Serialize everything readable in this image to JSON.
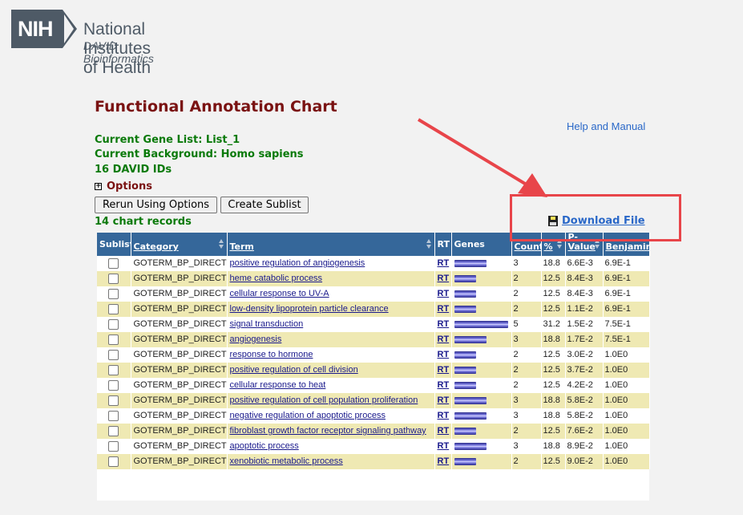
{
  "header": {
    "logo_text": "NIH",
    "org_name": "National Institutes of Health",
    "org_sub": "DAVID Bioinformatics"
  },
  "page": {
    "title": "Functional Annotation Chart",
    "help_link": "Help and Manual",
    "gene_list": "Current Gene List: List_1",
    "background": "Current Background: Homo sapiens",
    "ids": "16 DAVID IDs",
    "options_label": "Options",
    "rerun_button": "Rerun Using Options",
    "sublist_button": "Create Sublist",
    "records": "14 chart records",
    "download_label": "Download File"
  },
  "table": {
    "headers": {
      "sublist": "Sublist",
      "category": "Category",
      "term": "Term",
      "rt": "RT",
      "genes": "Genes",
      "count": "Count",
      "percent": "%",
      "pvalue_line1": "P-",
      "pvalue_line2": "Value",
      "benjamini": "Benjamini"
    },
    "rows": [
      {
        "category": "GOTERM_BP_DIRECT",
        "term": "positive regulation of angiogenesis",
        "rt": "RT",
        "count": "3",
        "percent": "18.8",
        "pvalue": "6.6E-3",
        "benjamini": "6.9E-1"
      },
      {
        "category": "GOTERM_BP_DIRECT",
        "term": "heme catabolic process",
        "rt": "RT",
        "count": "2",
        "percent": "12.5",
        "pvalue": "8.4E-3",
        "benjamini": "6.9E-1"
      },
      {
        "category": "GOTERM_BP_DIRECT",
        "term": "cellular response to UV-A",
        "rt": "RT",
        "count": "2",
        "percent": "12.5",
        "pvalue": "8.4E-3",
        "benjamini": "6.9E-1"
      },
      {
        "category": "GOTERM_BP_DIRECT",
        "term": "low-density lipoprotein particle clearance",
        "rt": "RT",
        "count": "2",
        "percent": "12.5",
        "pvalue": "1.1E-2",
        "benjamini": "6.9E-1"
      },
      {
        "category": "GOTERM_BP_DIRECT",
        "term": "signal transduction",
        "rt": "RT",
        "count": "5",
        "percent": "31.2",
        "pvalue": "1.5E-2",
        "benjamini": "7.5E-1"
      },
      {
        "category": "GOTERM_BP_DIRECT",
        "term": "angiogenesis",
        "rt": "RT",
        "count": "3",
        "percent": "18.8",
        "pvalue": "1.7E-2",
        "benjamini": "7.5E-1"
      },
      {
        "category": "GOTERM_BP_DIRECT",
        "term": "response to hormone",
        "rt": "RT",
        "count": "2",
        "percent": "12.5",
        "pvalue": "3.0E-2",
        "benjamini": "1.0E0"
      },
      {
        "category": "GOTERM_BP_DIRECT",
        "term": "positive regulation of cell division",
        "rt": "RT",
        "count": "2",
        "percent": "12.5",
        "pvalue": "3.7E-2",
        "benjamini": "1.0E0"
      },
      {
        "category": "GOTERM_BP_DIRECT",
        "term": "cellular response to heat",
        "rt": "RT",
        "count": "2",
        "percent": "12.5",
        "pvalue": "4.2E-2",
        "benjamini": "1.0E0"
      },
      {
        "category": "GOTERM_BP_DIRECT",
        "term": "positive regulation of cell population proliferation",
        "rt": "RT",
        "count": "3",
        "percent": "18.8",
        "pvalue": "5.8E-2",
        "benjamini": "1.0E0"
      },
      {
        "category": "GOTERM_BP_DIRECT",
        "term": "negative regulation of apoptotic process",
        "rt": "RT",
        "count": "3",
        "percent": "18.8",
        "pvalue": "5.8E-2",
        "benjamini": "1.0E0"
      },
      {
        "category": "GOTERM_BP_DIRECT",
        "term": "fibroblast growth factor receptor signaling pathway",
        "rt": "RT",
        "count": "2",
        "percent": "12.5",
        "pvalue": "7.6E-2",
        "benjamini": "1.0E0"
      },
      {
        "category": "GOTERM_BP_DIRECT",
        "term": "apoptotic process",
        "rt": "RT",
        "count": "3",
        "percent": "18.8",
        "pvalue": "8.9E-2",
        "benjamini": "1.0E0"
      },
      {
        "category": "GOTERM_BP_DIRECT",
        "term": "xenobiotic metabolic process",
        "rt": "RT",
        "count": "2",
        "percent": "12.5",
        "pvalue": "9.0E-2",
        "benjamini": "1.0E0"
      }
    ]
  },
  "colors": {
    "title": "#7a1212",
    "green_text": "#0a7a0a",
    "link": "#2a68c8",
    "header_bg": "#35679a",
    "row_alt": "#efe9b3",
    "annotation": "#e8454a"
  }
}
